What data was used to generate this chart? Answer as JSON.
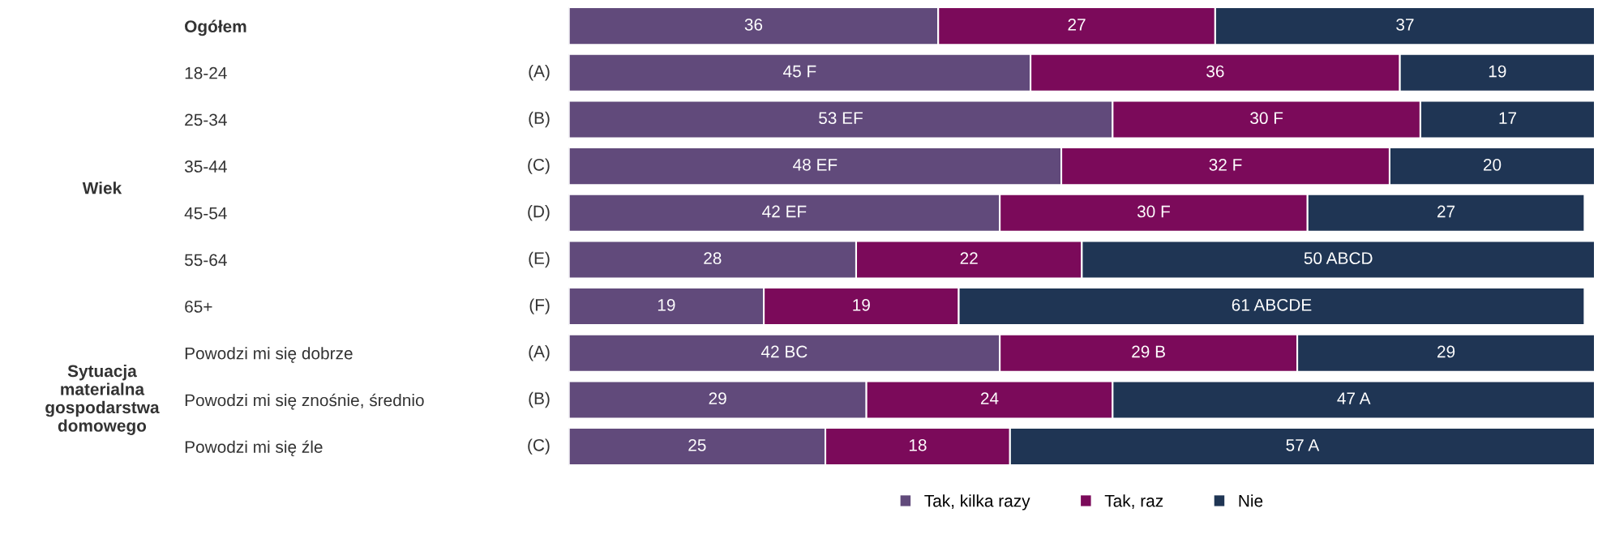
{
  "chart_data": {
    "type": "bar",
    "orientation": "horizontal",
    "stacked": true,
    "xlim": [
      0,
      100
    ],
    "tick_labels": "y",
    "grid": false,
    "legend": "bottom",
    "data_labels": true,
    "categories": [
      "Ogółem",
      "18-24",
      "25-34",
      "35-44",
      "45-54",
      "55-64",
      "65+",
      "Powodzi mi się dobrze",
      "Powodzi mi się znośnie, średnio",
      "Powodzi mi się źle"
    ],
    "series": [
      {
        "name": "Tak, kilka razy",
        "color": "#614a7b",
        "values": [
          36,
          45,
          53,
          48,
          42,
          28,
          19,
          42,
          29,
          25
        ],
        "value_labels": [
          "36",
          "45 F",
          "53 EF",
          "48 EF",
          "42 EF",
          "28",
          "19",
          "42 BC",
          "29",
          "25"
        ]
      },
      {
        "name": "Tak, raz",
        "color": "#7b0a5a",
        "values": [
          27,
          36,
          30,
          32,
          30,
          22,
          19,
          29,
          24,
          18
        ],
        "value_labels": [
          "27",
          "36",
          "30 F",
          "32 F",
          "30 F",
          "22",
          "19",
          "29 B",
          "24",
          "18"
        ]
      },
      {
        "name": "Nie",
        "color": "#1f3554",
        "values": [
          37,
          19,
          17,
          20,
          27,
          50,
          61,
          29,
          47,
          57
        ],
        "value_labels": [
          "37",
          "19",
          "17",
          "20",
          "27",
          "50 ABCD",
          "61 ABCDE",
          "29",
          "47 A",
          "57 A"
        ]
      }
    ],
    "annotations": [
      "Wiek",
      "Sytuacja\nmaterialna\ngospodarstwa\ndomowego",
      "(A)",
      "(B)",
      "(C)",
      "(D)",
      "(E)",
      "(F)",
      "(A)",
      "(B)",
      "(C)"
    ]
  }
}
